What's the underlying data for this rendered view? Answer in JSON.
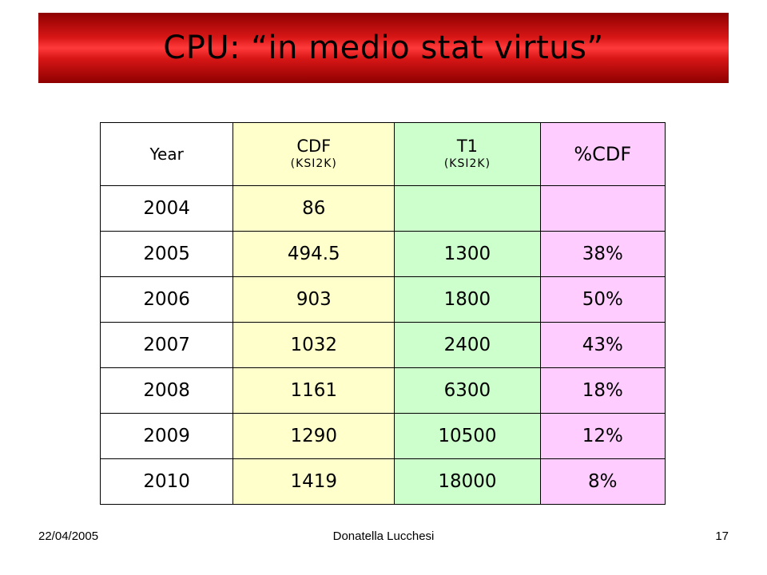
{
  "slide": {
    "title": "CPU: “in medio stat virtus”"
  },
  "table": {
    "headers": {
      "year": "Year",
      "cdf": "CDF",
      "cdf_unit": "(KSI2K)",
      "t1": "T1",
      "t1_unit": "(KSI2K)",
      "pct": "%CDF"
    },
    "rows": [
      {
        "year": "2004",
        "cdf": "86",
        "t1": "",
        "pct": ""
      },
      {
        "year": "2005",
        "cdf": "494.5",
        "t1": "1300",
        "pct": "38%"
      },
      {
        "year": "2006",
        "cdf": "903",
        "t1": "1800",
        "pct": "50%"
      },
      {
        "year": "2007",
        "cdf": "1032",
        "t1": "2400",
        "pct": "43%"
      },
      {
        "year": "2008",
        "cdf": "1161",
        "t1": "6300",
        "pct": "18%"
      },
      {
        "year": "2009",
        "cdf": "1290",
        "t1": "10500",
        "pct": "12%"
      },
      {
        "year": "2010",
        "cdf": "1419",
        "t1": "18000",
        "pct": "8%"
      }
    ]
  },
  "footer": {
    "date": "22/04/2005",
    "author": "Donatella Lucchesi",
    "page": "17"
  }
}
